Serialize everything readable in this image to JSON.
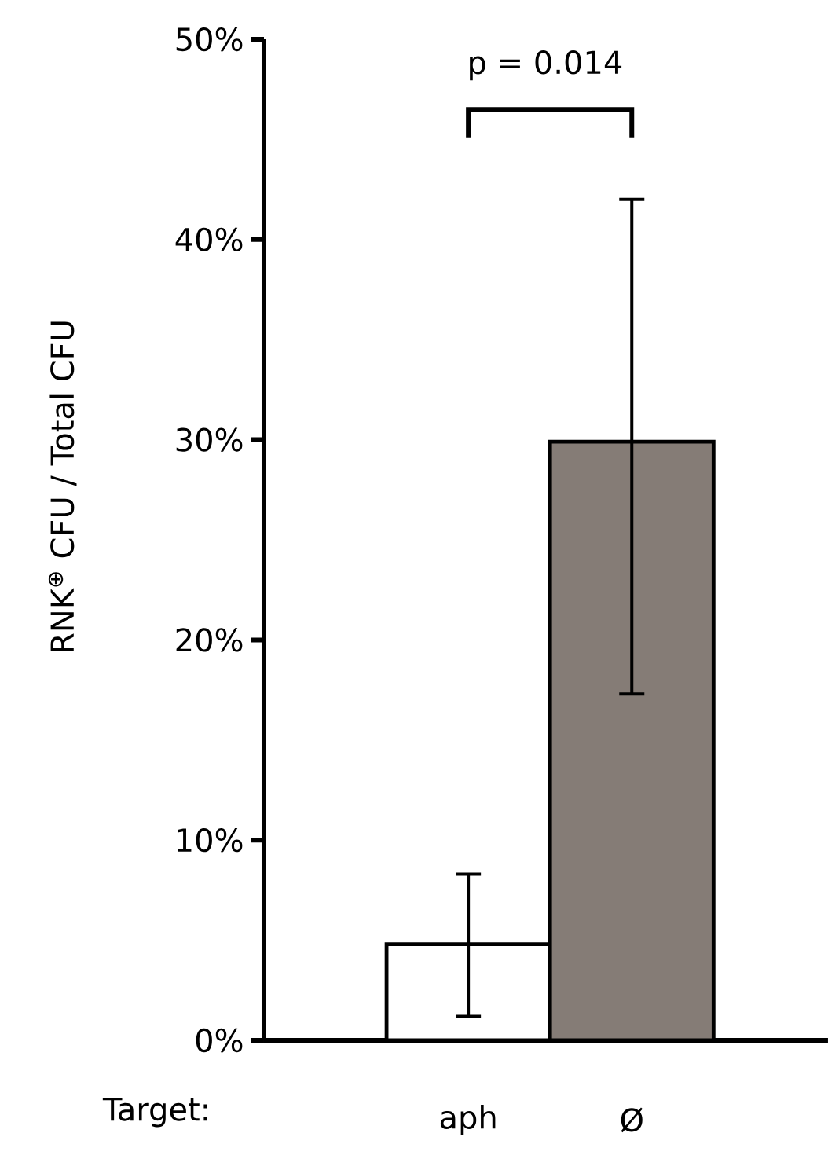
{
  "chart_data": {
    "type": "bar",
    "categories": [
      "aph",
      "Ø"
    ],
    "values": [
      4.8,
      29.9
    ],
    "colors": [
      "#ffffff",
      "#857c76"
    ],
    "errors": [
      [
        1.2,
        8.3
      ],
      [
        17.3,
        42.0
      ]
    ],
    "xlabel": "Target:",
    "ylabel": "RNK$^{⊕}$ CFU / Total CFU",
    "annotations": [
      "p = 0.014"
    ],
    "ylim": [
      0,
      50
    ],
    "yticks": [
      {
        "value": 0,
        "label": "0%"
      },
      {
        "value": 10,
        "label": "10%"
      },
      {
        "value": 20,
        "label": "20%"
      },
      {
        "value": 30,
        "label": "30%"
      },
      {
        "value": 40,
        "label": "40%"
      },
      {
        "value": 50,
        "label": "50%"
      }
    ]
  }
}
